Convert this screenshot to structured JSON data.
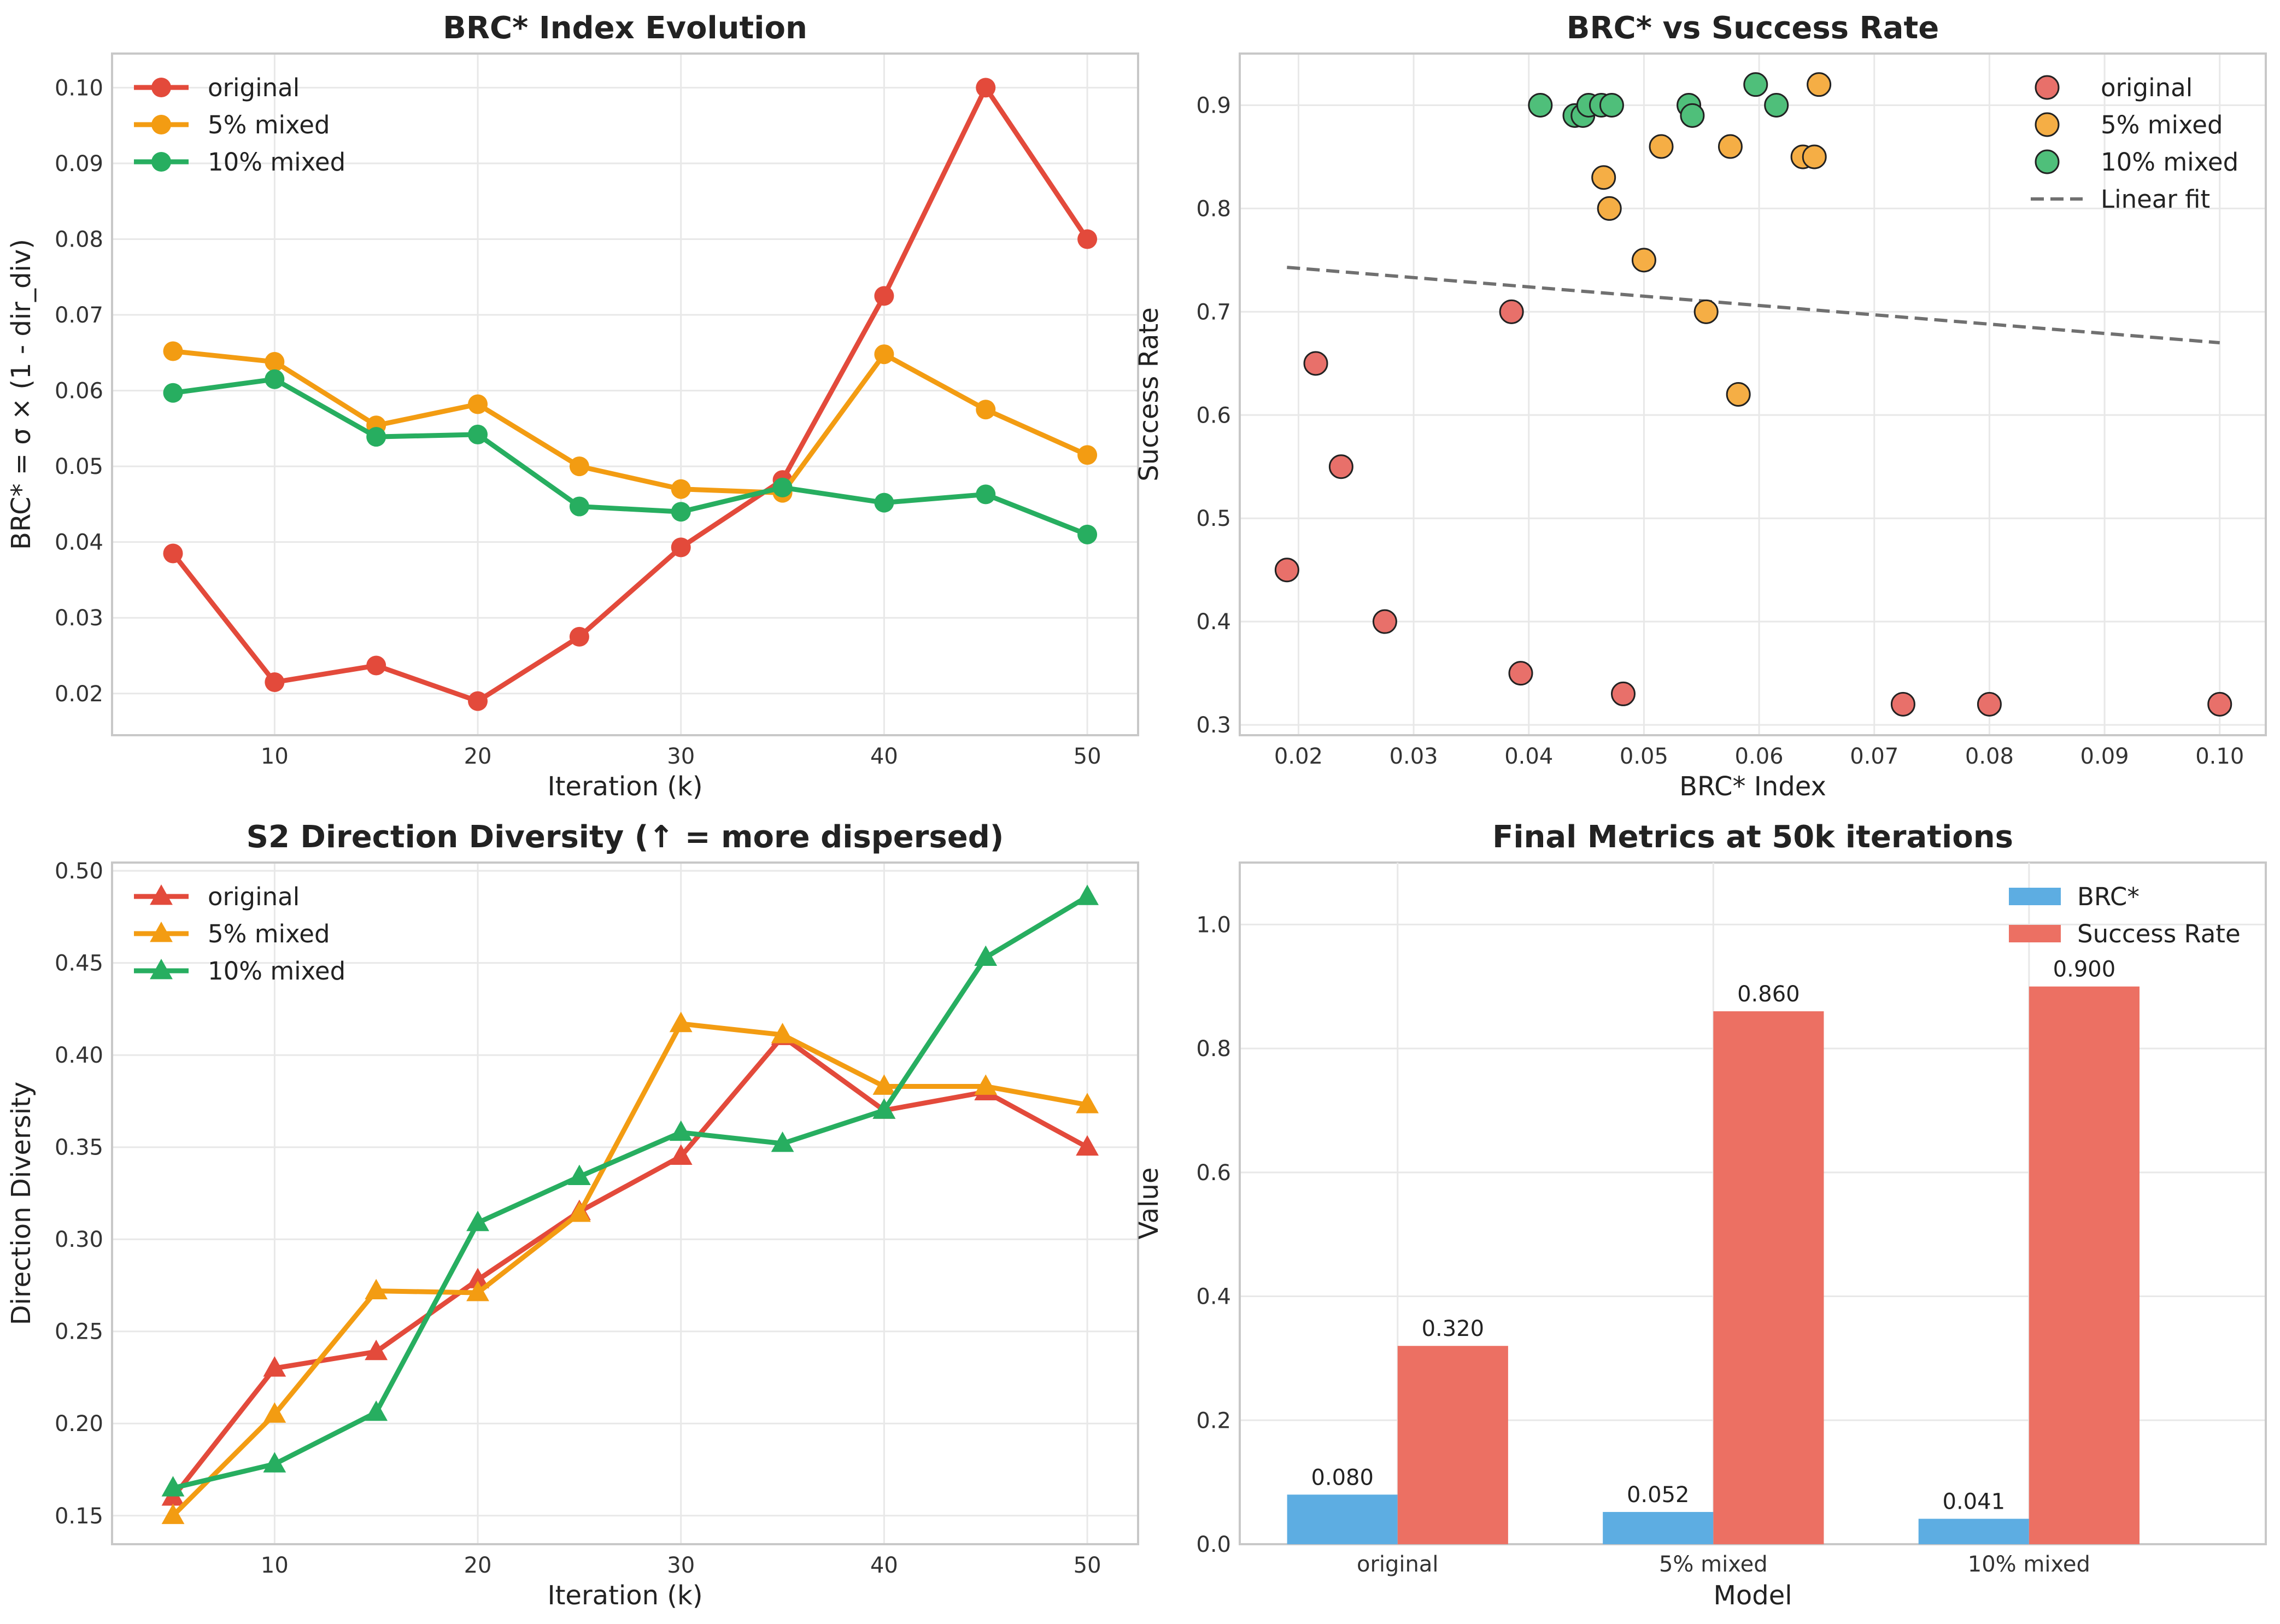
{
  "chart_data": [
    {
      "type": "line",
      "title": "BRC* Index Evolution",
      "xlabel": "Iteration (k)",
      "ylabel": "BRC* = σ × (1 - dir_div)",
      "x": [
        5,
        10,
        15,
        20,
        25,
        30,
        35,
        40,
        45,
        50
      ],
      "xlim": [
        2,
        52.5
      ],
      "ylim": [
        0.0145,
        0.1045
      ],
      "xticks": [
        10,
        20,
        30,
        40,
        50
      ],
      "yticks": [
        0.02,
        0.03,
        0.04,
        0.05,
        0.06,
        0.07,
        0.08,
        0.09,
        0.1
      ],
      "ytick_labels": [
        "0.02",
        "0.03",
        "0.04",
        "0.05",
        "0.06",
        "0.07",
        "0.08",
        "0.09",
        "0.10"
      ],
      "marker": "circle",
      "grid": true,
      "legend_position": "top-left",
      "series": [
        {
          "name": "original",
          "color": "#e34a3b",
          "values": [
            0.0385,
            0.0215,
            0.0237,
            0.019,
            0.0275,
            0.0393,
            0.0482,
            0.0725,
            0.1,
            0.08
          ]
        },
        {
          "name": "5% mixed",
          "color": "#f39c12",
          "values": [
            0.0652,
            0.0638,
            0.0554,
            0.0582,
            0.05,
            0.047,
            0.0465,
            0.0648,
            0.0575,
            0.0515
          ]
        },
        {
          "name": "10% mixed",
          "color": "#27ae60",
          "values": [
            0.0597,
            0.0615,
            0.0539,
            0.0542,
            0.0447,
            0.044,
            0.0472,
            0.0452,
            0.0463,
            0.041
          ]
        }
      ]
    },
    {
      "type": "scatter",
      "title": "BRC* vs Success Rate",
      "xlabel": "BRC* Index",
      "ylabel": "Success Rate",
      "xlim": [
        0.0149,
        0.104
      ],
      "ylim": [
        0.29,
        0.95
      ],
      "xticks": [
        0.02,
        0.03,
        0.04,
        0.05,
        0.06,
        0.07,
        0.08,
        0.09,
        0.1
      ],
      "xtick_labels": [
        "0.02",
        "0.03",
        "0.04",
        "0.05",
        "0.06",
        "0.07",
        "0.08",
        "0.09",
        "0.10"
      ],
      "yticks": [
        0.3,
        0.4,
        0.5,
        0.6,
        0.7,
        0.8,
        0.9
      ],
      "ytick_labels": [
        "0.3",
        "0.4",
        "0.5",
        "0.6",
        "0.7",
        "0.8",
        "0.9"
      ],
      "grid": true,
      "legend_position": "top-right",
      "series": [
        {
          "name": "original",
          "color": "#e8706a",
          "points": [
            [
              0.019,
              0.45
            ],
            [
              0.0215,
              0.65
            ],
            [
              0.0237,
              0.55
            ],
            [
              0.0275,
              0.4
            ],
            [
              0.0385,
              0.7
            ],
            [
              0.0393,
              0.35
            ],
            [
              0.0482,
              0.33
            ],
            [
              0.0725,
              0.32
            ],
            [
              0.08,
              0.32
            ],
            [
              0.1,
              0.32
            ]
          ]
        },
        {
          "name": "5% mixed",
          "color": "#f5ae45",
          "points": [
            [
              0.0465,
              0.83
            ],
            [
              0.047,
              0.8
            ],
            [
              0.05,
              0.75
            ],
            [
              0.0515,
              0.86
            ],
            [
              0.0554,
              0.7
            ],
            [
              0.0575,
              0.86
            ],
            [
              0.0582,
              0.62
            ],
            [
              0.0638,
              0.85
            ],
            [
              0.0648,
              0.85
            ],
            [
              0.0652,
              0.92
            ]
          ]
        },
        {
          "name": "10% mixed",
          "color": "#4fbf7a",
          "points": [
            [
              0.041,
              0.9
            ],
            [
              0.044,
              0.89
            ],
            [
              0.0447,
              0.89
            ],
            [
              0.0452,
              0.9
            ],
            [
              0.0463,
              0.9
            ],
            [
              0.0472,
              0.9
            ],
            [
              0.0539,
              0.9
            ],
            [
              0.0542,
              0.89
            ],
            [
              0.0597,
              0.92
            ],
            [
              0.0615,
              0.9
            ]
          ]
        }
      ],
      "fit": {
        "name": "Linear fit",
        "color": "#707070",
        "points": [
          [
            0.019,
            0.743
          ],
          [
            0.1,
            0.67
          ]
        ]
      }
    },
    {
      "type": "line",
      "title": "S2 Direction Diversity (↑ = more dispersed)",
      "xlabel": "Iteration (k)",
      "ylabel": "Direction Diversity",
      "x": [
        5,
        10,
        15,
        20,
        25,
        30,
        35,
        40,
        45,
        50
      ],
      "xlim": [
        2,
        52.5
      ],
      "ylim": [
        0.1345,
        0.5045
      ],
      "xticks": [
        10,
        20,
        30,
        40,
        50
      ],
      "yticks": [
        0.15,
        0.2,
        0.25,
        0.3,
        0.35,
        0.4,
        0.45,
        0.5
      ],
      "ytick_labels": [
        "0.15",
        "0.20",
        "0.25",
        "0.30",
        "0.35",
        "0.40",
        "0.45",
        "0.50"
      ],
      "marker": "triangle",
      "grid": true,
      "legend_position": "top-left",
      "series": [
        {
          "name": "original",
          "color": "#e34a3b",
          "values": [
            0.16,
            0.23,
            0.239,
            0.278,
            0.315,
            0.345,
            0.41,
            0.37,
            0.38,
            0.35
          ]
        },
        {
          "name": "5% mixed",
          "color": "#f39c12",
          "values": [
            0.15,
            0.205,
            0.272,
            0.271,
            0.314,
            0.417,
            0.411,
            0.383,
            0.383,
            0.373
          ]
        },
        {
          "name": "10% mixed",
          "color": "#27ae60",
          "values": [
            0.165,
            0.178,
            0.206,
            0.309,
            0.334,
            0.358,
            0.352,
            0.37,
            0.453,
            0.486
          ]
        }
      ]
    },
    {
      "type": "bar",
      "title": "Final Metrics at 50k iterations",
      "xlabel": "Model",
      "ylabel": "Value",
      "categories": [
        "original",
        "5% mixed",
        "10% mixed"
      ],
      "ylim": [
        0,
        1.1
      ],
      "yticks": [
        0,
        0.2,
        0.4,
        0.6,
        0.8,
        1.0
      ],
      "ytick_labels": [
        "0.0",
        "0.2",
        "0.4",
        "0.6",
        "0.8",
        "1.0"
      ],
      "grid": true,
      "legend_position": "top-right",
      "series": [
        {
          "name": "BRC*",
          "color": "#5dade2",
          "values": [
            0.08,
            0.052,
            0.041
          ],
          "labels": [
            "0.080",
            "0.052",
            "0.041"
          ]
        },
        {
          "name": "Success Rate",
          "color": "#ec7063",
          "values": [
            0.32,
            0.86,
            0.9
          ],
          "labels": [
            "0.320",
            "0.860",
            "0.900"
          ]
        }
      ]
    }
  ]
}
